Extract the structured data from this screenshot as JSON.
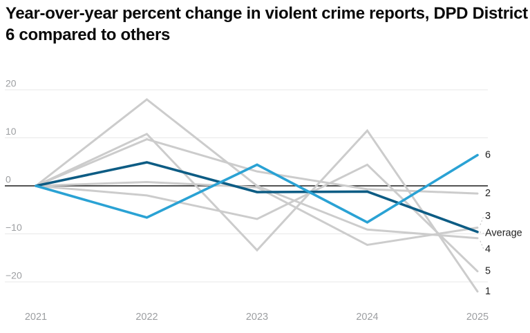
{
  "header": {
    "title": "Year-over-year percent change in violent crime reports, DPD District 6 compared to others"
  },
  "chart_data": {
    "type": "line",
    "title": "Year-over-year percent change in violent crime reports, DPD District 6 compared to others",
    "x_labels": [
      "2021",
      "2022",
      "2023",
      "2024",
      "2025"
    ],
    "y_ticks": [
      20,
      10,
      0,
      -10,
      -20
    ],
    "y_tick_labels": [
      "20",
      "10",
      "0",
      "−10",
      "−20"
    ],
    "ylim": [
      -24,
      21
    ],
    "grid": true,
    "legend_position": "right-end-labels",
    "xlabel": "",
    "ylabel": "",
    "series": [
      {
        "name": "1",
        "role": "other",
        "values": [
          0,
          10.8,
          -13.4,
          11.5,
          -22.0
        ]
      },
      {
        "name": "2",
        "role": "other",
        "values": [
          0,
          9.7,
          3.0,
          -0.7,
          -1.6
        ]
      },
      {
        "name": "3",
        "role": "other",
        "values": [
          0,
          0.8,
          -0.3,
          -12.3,
          -8.7
        ]
      },
      {
        "name": "4",
        "role": "other",
        "values": [
          0,
          18.0,
          0.0,
          -9.1,
          -10.9
        ]
      },
      {
        "name": "5",
        "role": "other",
        "values": [
          0,
          -2.0,
          -6.9,
          4.4,
          -17.8
        ]
      },
      {
        "name": "6",
        "role": "highlight",
        "values": [
          0,
          -6.6,
          4.4,
          -7.6,
          6.4
        ]
      },
      {
        "name": "Average",
        "role": "average",
        "values": [
          0,
          4.9,
          -1.3,
          -1.2,
          -9.6
        ]
      }
    ],
    "colors": {
      "highlight": "#2aa2d4",
      "average": "#0d5c84",
      "other": "#cccccc",
      "grid": "#e7e7e7",
      "zero_line": "#1a1a1a",
      "tick_text": "#9c9ea1",
      "end_label_text": "#1f1f1f",
      "leader": "#c6c6c6"
    }
  }
}
